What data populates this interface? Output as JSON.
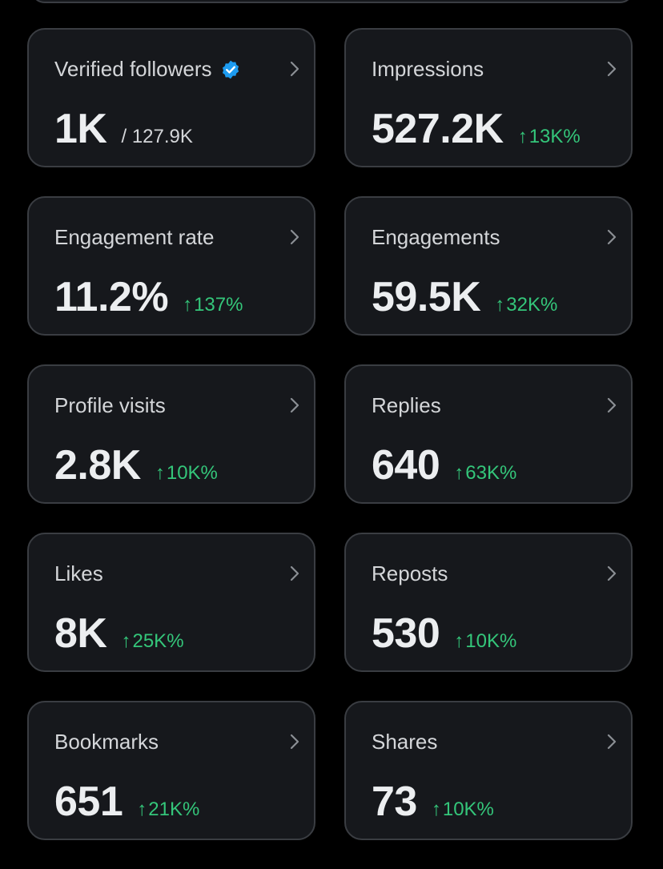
{
  "cards": [
    {
      "label": "Verified followers",
      "value": "1K",
      "suffix": "/ 127.9K",
      "change": "",
      "verified": true
    },
    {
      "label": "Impressions",
      "value": "527.2K",
      "suffix": "",
      "change": "13K%"
    },
    {
      "label": "Engagement rate",
      "value": "11.2%",
      "suffix": "",
      "change": "137%"
    },
    {
      "label": "Engagements",
      "value": "59.5K",
      "suffix": "",
      "change": "32K%"
    },
    {
      "label": "Profile visits",
      "value": "2.8K",
      "suffix": "",
      "change": "10K%"
    },
    {
      "label": "Replies",
      "value": "640",
      "suffix": "",
      "change": "63K%"
    },
    {
      "label": "Likes",
      "value": "8K",
      "suffix": "",
      "change": "25K%"
    },
    {
      "label": "Reposts",
      "value": "530",
      "suffix": "",
      "change": "10K%"
    },
    {
      "label": "Bookmarks",
      "value": "651",
      "suffix": "",
      "change": "21K%"
    },
    {
      "label": "Shares",
      "value": "73",
      "suffix": "",
      "change": "10K%"
    }
  ],
  "arrow_glyph": "↑",
  "colors": {
    "background": "#000000",
    "card_background": "#16181c",
    "card_border": "#3a3d42",
    "label_text": "#d4d6d9",
    "value_text": "#eceef0",
    "positive_change": "#34c67a",
    "verified_badge": "#1d9bf0"
  },
  "icons": {
    "verified": "verified-badge-icon",
    "chevron": "chevron-right-icon",
    "arrow": "arrow-up-icon"
  }
}
